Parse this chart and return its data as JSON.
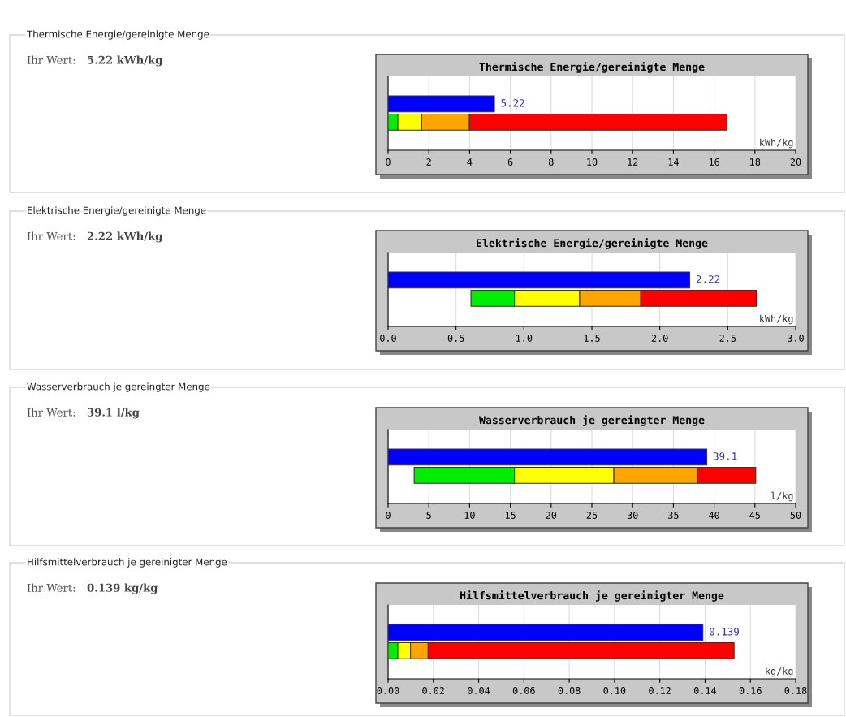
{
  "chart_data": [
    {
      "type": "bar",
      "orientation": "horizontal",
      "stacked": true,
      "title": "Thermische Energie/gereinigte Menge",
      "xlabel": "kWh/kg",
      "annotations": [
        "Thermische Energie/gereinigte Menge",
        "Ihr Wert:",
        "5.22 kWh/kg"
      ],
      "categories": [
        null,
        null
      ],
      "grid": "x",
      "tick_labels": "x",
      "xlim": [
        0,
        20
      ],
      "xticks": [
        0,
        2,
        4,
        6,
        8,
        10,
        12,
        14,
        16,
        18,
        20
      ],
      "series": [
        {
          "color": "#0000ff",
          "values": [
            5.22,
            null
          ],
          "value_labels": [
            "5.22",
            null
          ]
        },
        {
          "color": "#00ee00",
          "values": [
            null,
            0.48
          ]
        },
        {
          "color": "#ffff00",
          "values": [
            null,
            1.17
          ]
        },
        {
          "color": "#ffa500",
          "values": [
            null,
            2.34
          ]
        },
        {
          "color": "#ff0000",
          "values": [
            null,
            12.64
          ]
        }
      ]
    },
    {
      "type": "bar",
      "orientation": "horizontal",
      "title": "Elektrische Energie/gereinigte Menge",
      "xlabel": "kWh/kg",
      "annotations": [
        "Elektrische Energie/gereinigte Menge",
        "Ihr Wert:",
        "2.22 kWh/kg"
      ],
      "categories": [
        null,
        null
      ],
      "grid": "x",
      "tick_labels": "x",
      "xlim": [
        0,
        3
      ],
      "xticks": [
        {
          "value": 0,
          "label": "0.0"
        },
        {
          "value": 0.5,
          "label": "0.5"
        },
        {
          "value": 1,
          "label": "1.0"
        },
        {
          "value": 1.5,
          "label": "1.5"
        },
        {
          "value": 2,
          "label": "2.0"
        },
        {
          "value": 2.5,
          "label": "2.5"
        },
        {
          "value": 3,
          "label": "3.0"
        }
      ],
      "series": [
        {
          "color": "#0000ff",
          "values": [
            2.22,
            null
          ],
          "value_labels": [
            "2.22",
            null
          ]
        },
        {
          "color": "#00ee00",
          "base": [
            null,
            0.61
          ],
          "values": [
            null,
            0.32
          ]
        },
        {
          "color": "#ffff00",
          "base": [
            null,
            0.93
          ],
          "values": [
            null,
            0.48
          ]
        },
        {
          "color": "#ffa500",
          "base": [
            null,
            1.41
          ],
          "values": [
            null,
            0.45
          ]
        },
        {
          "color": "#ff0000",
          "base": [
            null,
            1.86
          ],
          "values": [
            null,
            0.85
          ]
        }
      ]
    },
    {
      "type": "bar",
      "orientation": "horizontal",
      "title": "Wasserverbrauch je gereingter Menge",
      "xlabel": "l/kg",
      "annotations": [
        "Wasserverbrauch je gereingter Menge",
        "Ihr Wert:",
        "39.1 l/kg"
      ],
      "categories": [
        null,
        null
      ],
      "grid": "x",
      "tick_labels": "x",
      "xlim": [
        0,
        50
      ],
      "xticks": [
        0,
        5,
        10,
        15,
        20,
        25,
        30,
        35,
        40,
        45,
        50
      ],
      "series": [
        {
          "color": "#0000ff",
          "values": [
            39.1,
            null
          ],
          "value_labels": [
            "39.1",
            null
          ]
        },
        {
          "color": "#00ee00",
          "base": [
            null,
            3.2
          ],
          "values": [
            null,
            12.3
          ]
        },
        {
          "color": "#ffff00",
          "base": [
            null,
            15.5
          ],
          "values": [
            null,
            12.2
          ]
        },
        {
          "color": "#ffa500",
          "base": [
            null,
            27.7
          ],
          "values": [
            null,
            10.3
          ]
        },
        {
          "color": "#ff0000",
          "base": [
            null,
            38.0
          ],
          "values": [
            null,
            7.1
          ]
        }
      ]
    },
    {
      "type": "bar",
      "orientation": "horizontal",
      "stacked": true,
      "title": "Hilfsmittelverbrauch je gereinigter Menge",
      "xlabel": "kg/kg",
      "annotations": [
        "Hilfsmittelverbrauch je gereinigter Menge",
        "Ihr Wert:",
        "0.139 kg/kg"
      ],
      "categories": [
        null,
        null
      ],
      "grid": "x",
      "tick_labels": "x",
      "xlim": [
        0,
        0.18
      ],
      "xticks": [
        {
          "value": 0,
          "label": "0.00"
        },
        {
          "value": 0.02,
          "label": "0.02"
        },
        {
          "value": 0.04,
          "label": "0.04"
        },
        {
          "value": 0.06,
          "label": "0.06"
        },
        {
          "value": 0.08,
          "label": "0.08"
        },
        {
          "value": 0.1,
          "label": "0.10"
        },
        {
          "value": 0.12,
          "label": "0.12"
        },
        {
          "value": 0.14,
          "label": "0.14"
        },
        {
          "value": 0.16,
          "label": "0.16"
        },
        {
          "value": 0.18,
          "label": "0.18"
        }
      ],
      "series": [
        {
          "color": "#0000ff",
          "values": [
            0.139,
            null
          ],
          "value_labels": [
            "0.139",
            null
          ]
        },
        {
          "color": "#00ee00",
          "values": [
            null,
            0.0043
          ]
        },
        {
          "color": "#ffff00",
          "values": [
            null,
            0.0056
          ]
        },
        {
          "color": "#ffa500",
          "values": [
            null,
            0.0078
          ]
        },
        {
          "color": "#ff0000",
          "values": [
            null,
            0.1351
          ]
        }
      ]
    }
  ]
}
